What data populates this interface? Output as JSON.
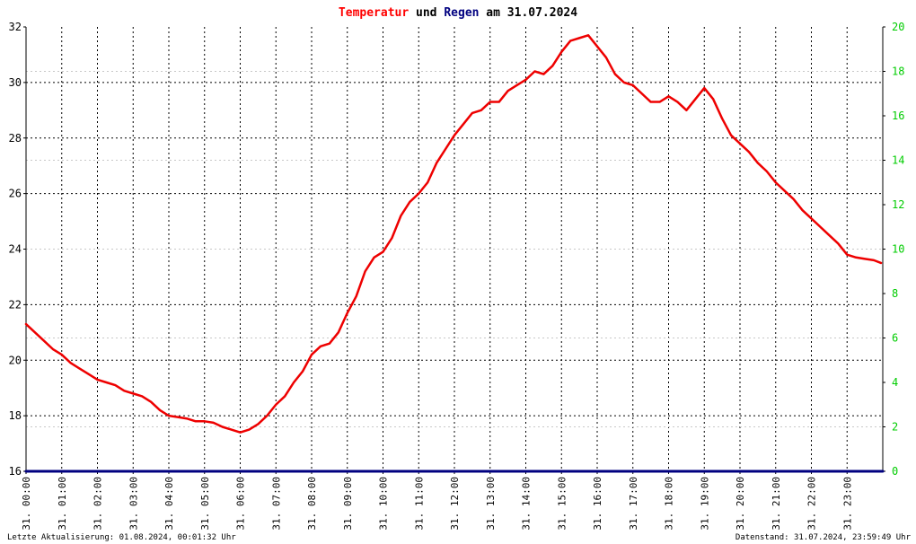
{
  "chart_data": {
    "type": "line",
    "title_parts": [
      {
        "text": "Temperatur",
        "color": "#ff0000"
      },
      {
        "text": " und ",
        "color": "#000000"
      },
      {
        "text": "Regen",
        "color": "#000080"
      },
      {
        "text": " am 31.07.2024",
        "color": "#000000"
      }
    ],
    "x_tick_labels": [
      "31. 00:00",
      "31. 01:00",
      "31. 02:00",
      "31. 03:00",
      "31. 04:00",
      "31. 05:00",
      "31. 06:00",
      "31. 07:00",
      "31. 08:00",
      "31. 09:00",
      "31. 10:00",
      "31. 11:00",
      "31. 12:00",
      "31. 13:00",
      "31. 14:00",
      "31. 15:00",
      "31. 16:00",
      "31. 17:00",
      "31. 18:00",
      "31. 19:00",
      "31. 20:00",
      "31. 21:00",
      "31. 22:00",
      "31. 23:00"
    ],
    "xlim_hours": [
      0,
      24
    ],
    "y_left": {
      "ticks": [
        "16",
        "18",
        "20",
        "22",
        "24",
        "26",
        "28",
        "30",
        "32"
      ],
      "ylim": [
        16,
        32
      ]
    },
    "y_right": {
      "ticks": [
        "0",
        "2",
        "4",
        "6",
        "8",
        "10",
        "12",
        "14",
        "16",
        "18",
        "20"
      ],
      "ylim": [
        0,
        20
      ],
      "tick_color": "#00cc00"
    },
    "grid": true,
    "series": [
      {
        "name": "Temperatur",
        "color": "#ee0000",
        "axis": "left",
        "x": [
          0,
          0.25,
          0.5,
          0.75,
          1,
          1.25,
          1.5,
          1.75,
          2,
          2.25,
          2.5,
          2.75,
          3,
          3.25,
          3.5,
          3.75,
          4,
          4.25,
          4.5,
          4.75,
          5,
          5.25,
          5.5,
          5.75,
          6,
          6.25,
          6.5,
          6.75,
          7,
          7.25,
          7.5,
          7.75,
          8,
          8.25,
          8.5,
          8.75,
          9,
          9.25,
          9.5,
          9.75,
          10,
          10.25,
          10.5,
          10.75,
          11,
          11.25,
          11.5,
          11.75,
          12,
          12.25,
          12.5,
          12.75,
          13,
          13.25,
          13.5,
          13.75,
          14,
          14.25,
          14.5,
          14.75,
          15,
          15.25,
          15.5,
          15.75,
          16,
          16.25,
          16.5,
          16.75,
          17,
          17.25,
          17.5,
          17.75,
          18,
          18.25,
          18.5,
          18.75,
          19,
          19.25,
          19.5,
          19.75,
          20,
          20.25,
          20.5,
          20.75,
          21,
          21.25,
          21.5,
          21.75,
          22,
          22.25,
          22.5,
          22.75,
          23,
          23.25,
          23.5,
          23.75,
          23.95
        ],
        "y": [
          21.3,
          21.0,
          20.7,
          20.4,
          20.2,
          19.9,
          19.7,
          19.5,
          19.3,
          19.2,
          19.1,
          18.9,
          18.8,
          18.7,
          18.5,
          18.2,
          18.0,
          17.95,
          17.9,
          17.8,
          17.8,
          17.75,
          17.6,
          17.5,
          17.4,
          17.5,
          17.7,
          18.0,
          18.4,
          18.7,
          19.2,
          19.6,
          20.2,
          20.5,
          20.6,
          21.0,
          21.7,
          22.3,
          23.2,
          23.7,
          23.9,
          24.4,
          25.2,
          25.7,
          26.0,
          26.4,
          27.1,
          27.6,
          28.1,
          28.5,
          28.9,
          29.0,
          29.3,
          29.3,
          29.7,
          29.9,
          30.1,
          30.4,
          30.3,
          30.6,
          31.1,
          31.5,
          31.6,
          31.7,
          31.3,
          30.9,
          30.3,
          30.0,
          29.9,
          29.6,
          29.3,
          29.3,
          29.5,
          29.3,
          29.0,
          29.4,
          29.8,
          29.4,
          28.7,
          28.1,
          27.8,
          27.5,
          27.1,
          26.8,
          26.4,
          26.1,
          25.8,
          25.4,
          25.1,
          24.8,
          24.5,
          24.2,
          23.8,
          23.7,
          23.65,
          23.6,
          23.5
        ],
        "value_range_observed": [
          17.4,
          31.7
        ]
      },
      {
        "name": "Regen",
        "color": "#000080",
        "axis": "right",
        "x": [
          0,
          24
        ],
        "y": [
          0,
          0
        ]
      }
    ],
    "footer_left": "Letzte Aktualisierung: 01.08.2024, 00:01:32 Uhr",
    "footer_right": "Datenstand: 31.07.2024, 23:59:49 Uhr"
  }
}
